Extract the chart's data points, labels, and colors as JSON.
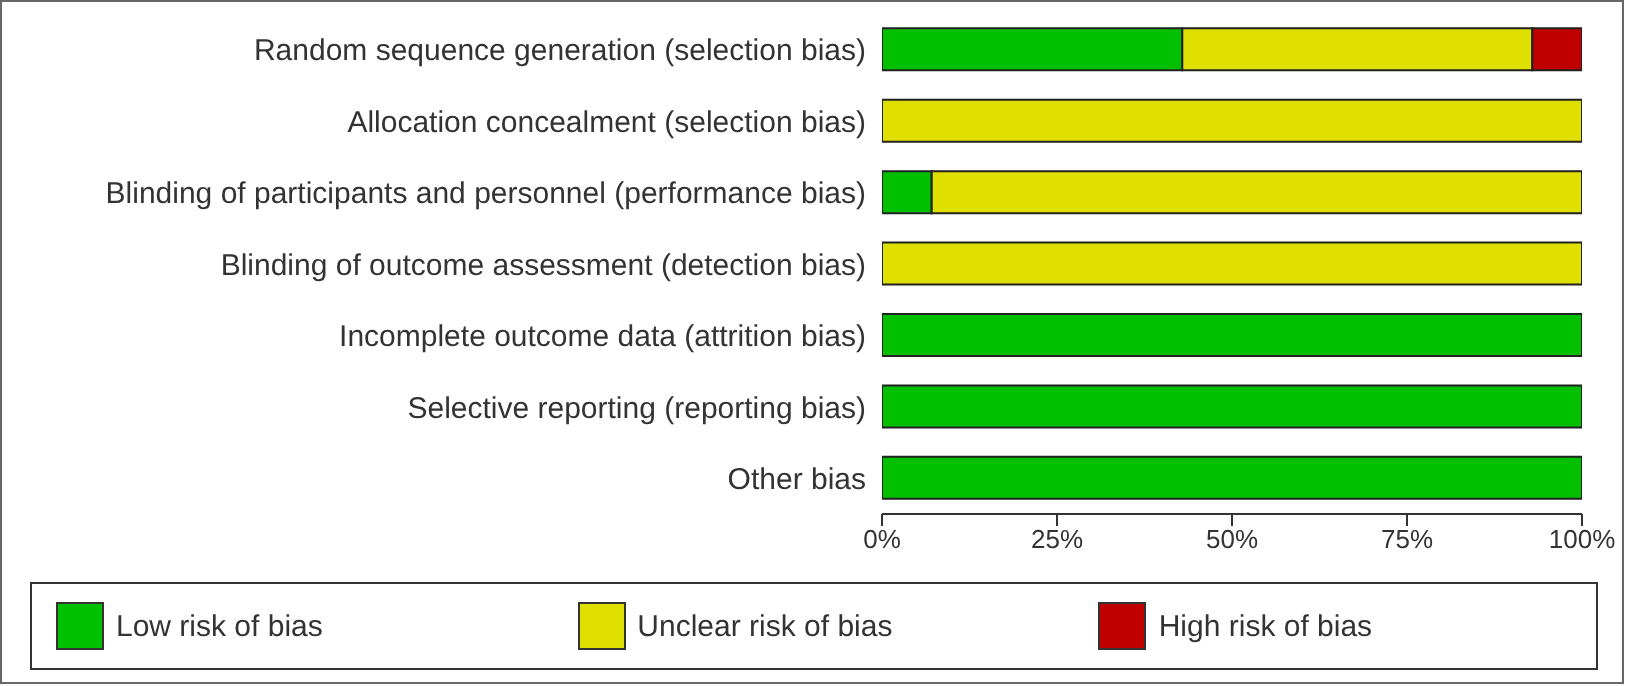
{
  "chart_data": {
    "type": "bar",
    "orientation": "horizontal",
    "stacked": true,
    "categories": [
      "Random sequence generation (selection bias)",
      "Allocation concealment (selection bias)",
      "Blinding of participants and personnel (performance bias)",
      "Blinding of outcome assessment (detection bias)",
      "Incomplete outcome data (attrition bias)",
      "Selective reporting (reporting bias)",
      "Other bias"
    ],
    "series": [
      {
        "name": "Low risk of bias",
        "color": "#00c000",
        "values": [
          42.9,
          0,
          7.1,
          0,
          100,
          100,
          100
        ]
      },
      {
        "name": "Unclear risk of bias",
        "color": "#e0e000",
        "values": [
          50,
          100,
          92.9,
          100,
          0,
          0,
          0
        ]
      },
      {
        "name": "High risk of bias",
        "color": "#c00000",
        "values": [
          7.1,
          0,
          0,
          0,
          0,
          0,
          0
        ]
      }
    ],
    "xlim": [
      0,
      100
    ],
    "xticks": [
      {
        "value": 0,
        "label": "0%"
      },
      {
        "value": 25,
        "label": "25%"
      },
      {
        "value": 50,
        "label": "50%"
      },
      {
        "value": 75,
        "label": "75%"
      },
      {
        "value": 100,
        "label": "100%"
      }
    ],
    "grid": false,
    "legend": "bottom"
  }
}
